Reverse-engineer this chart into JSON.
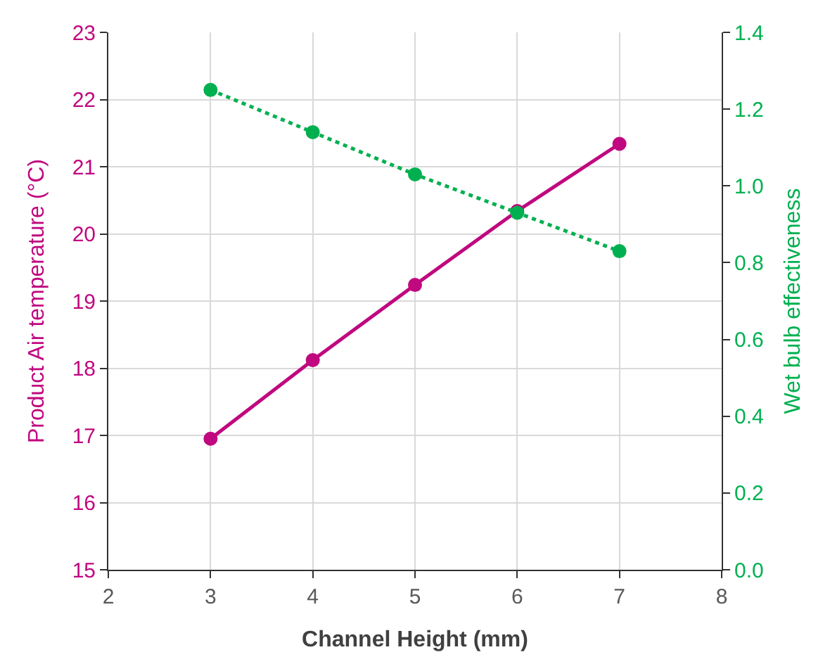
{
  "chart_data": {
    "type": "line",
    "xlabel": "Channel Height (mm)",
    "ylabel": "Product Air temperature (°C)",
    "y2label": "Wet bulb effectiveness",
    "x": [
      3,
      4,
      5,
      6,
      7
    ],
    "series": [
      {
        "color": "#c0087f",
        "values": [
          16.95,
          18.12,
          19.24,
          20.34,
          21.34
        ],
        "line_style": "solid"
      },
      {
        "color": "#00b050",
        "values": [
          1.25,
          1.14,
          1.03,
          0.93,
          0.83
        ],
        "axis": "y2",
        "line_style": "dotted"
      }
    ],
    "xlim": [
      2,
      8
    ],
    "xticks": [
      2,
      3,
      4,
      5,
      6,
      7,
      8
    ],
    "ylim": [
      15,
      23
    ],
    "yticks": [
      15,
      16,
      17,
      18,
      19,
      20,
      21,
      22,
      23
    ],
    "y2lim": [
      0,
      1.4
    ],
    "y2ticks": [
      {
        "value": 0,
        "label": "0.0"
      },
      {
        "value": 0.2,
        "label": "0.2"
      },
      {
        "value": 0.4,
        "label": "0.4"
      },
      {
        "value": 0.6,
        "label": "0.6"
      },
      {
        "value": 0.8,
        "label": "0.8"
      },
      {
        "value": 1.0,
        "label": "1.0"
      },
      {
        "value": 1.2,
        "label": "1.2"
      },
      {
        "value": 1.4,
        "label": "1.4"
      }
    ],
    "grid": true,
    "marker": "circle"
  }
}
